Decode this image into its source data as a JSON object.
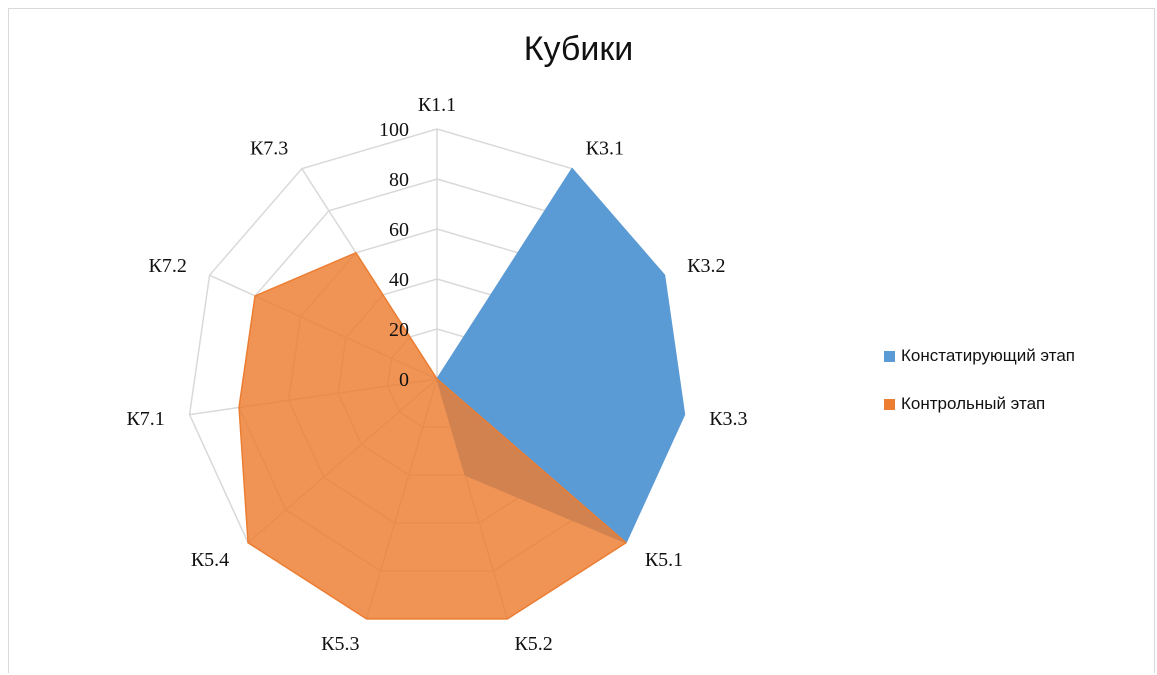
{
  "chart_data": {
    "type": "radar",
    "title": "Кубики",
    "categories": [
      "К1.1",
      "К3.1",
      "К3.2",
      "К3.3",
      "К5.1",
      "К5.2",
      "К5.3",
      "К5.4",
      "К7.1",
      "К7.2",
      "К7.3"
    ],
    "rlim": [
      0,
      100
    ],
    "ticks": [
      "0",
      "20",
      "40",
      "60",
      "80",
      "100"
    ],
    "legend_position": "right",
    "grid": true,
    "series": [
      {
        "name": "Констатирующий этап",
        "color": "#5b9bd5",
        "values": [
          0,
          100,
          100,
          100,
          100,
          40,
          0,
          0,
          0,
          0,
          0
        ]
      },
      {
        "name": "Контрольный этап",
        "color": "#ed7d31",
        "values": [
          0,
          0,
          0,
          0,
          100,
          100,
          100,
          100,
          80,
          80,
          60
        ]
      }
    ]
  }
}
